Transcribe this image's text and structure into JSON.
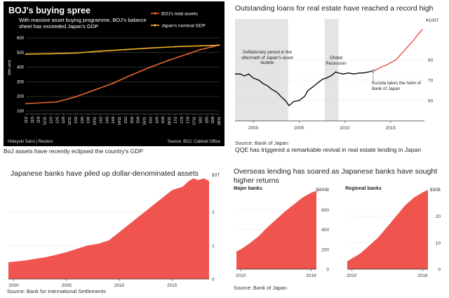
{
  "colors": {
    "boj_assets": "#e8672b",
    "nominal_gdp": "#f0b323",
    "loans": "#000000",
    "loans_kuroda": "#e8423f",
    "area_fill": "#f0544f",
    "shade": "#e4e4e4",
    "black_panel": "#000000"
  },
  "chart_data": [
    {
      "type": "line",
      "title": "BOJ's buying spree",
      "subtitle": "With massive asset buying programme, BOJ's balance sheet has exceeded Japan's GDP",
      "ylabel": "(trln yen)",
      "yticks": [
        100,
        200,
        300,
        400,
        500,
        600
      ],
      "ylim": [
        80,
        600
      ],
      "xticks": [
        "11/2",
        "11/5",
        "11/8",
        "11/11",
        "12/2",
        "12/5",
        "12/8",
        "12/11",
        "13/2",
        "13/5",
        "13/8",
        "13/11",
        "14/2",
        "14/5",
        "14/8",
        "14/11",
        "15/2",
        "15/5",
        "15/8",
        "15/11",
        "16/2",
        "16/5",
        "16/8",
        "16/11",
        "17/2",
        "17/5",
        "17/8",
        "17/11",
        "18/2",
        "18/5",
        "18/8",
        "18/11"
      ],
      "legend": [
        "BOJ's total assets",
        "Japan's nominal GDP"
      ],
      "series": [
        {
          "name": "BOJ's total assets",
          "color_key": "boj_assets",
          "x": [
            0,
            5,
            8,
            11,
            14,
            17,
            20,
            23,
            26,
            28,
            30,
            31
          ],
          "values": [
            150,
            162,
            197,
            243,
            290,
            347,
            400,
            448,
            490,
            520,
            540,
            553
          ]
        },
        {
          "name": "Japan's nominal GDP",
          "color_key": "nominal_gdp",
          "x": [
            0,
            4,
            8,
            12,
            16,
            20,
            24,
            28,
            31
          ],
          "values": [
            489,
            492,
            497,
            510,
            520,
            531,
            540,
            546,
            550
          ]
        }
      ],
      "footer_left": "Hideyuki Sano | Reuters",
      "footer_right": "Source: BOJ, Cabinet Office",
      "caption": "BoJ assets have recently eclipsed the country's GDP"
    },
    {
      "type": "line",
      "title": "Outstanding loans for real estate have reached a record high",
      "unit_label": "¥100T",
      "yticks": [
        60,
        70,
        80
      ],
      "ylim": [
        50,
        100
      ],
      "xticks": [
        2000,
        2005,
        2010,
        2015
      ],
      "xlim": [
        1998,
        2018.7
      ],
      "shaded_periods": [
        [
          1998,
          2003.8
        ],
        [
          2007.8,
          2009.3
        ]
      ],
      "annotations": [
        "Deflationary period in the aftermath of Japan's asset bubble",
        "Global Recession",
        "Kuroda takes the helm of Bank of Japan"
      ],
      "series": [
        {
          "name": "Outstanding loans",
          "x": [
            1998,
            1998.6,
            1999,
            1999.5,
            2000,
            2000.6,
            2001,
            2001.6,
            2002,
            2002.6,
            2003,
            2003.5,
            2003.9,
            2004.4,
            2005,
            2005.6,
            2006,
            2006.6,
            2007,
            2007.6,
            2008,
            2008.6,
            2009,
            2009.3,
            2009.8,
            2010.4,
            2011,
            2011.6,
            2012,
            2012.6,
            2013.1
          ],
          "values": [
            73,
            73,
            72,
            73,
            71,
            70,
            68.5,
            67,
            65.5,
            64,
            62,
            60,
            57.5,
            59.5,
            60,
            62,
            65,
            67,
            68.5,
            70.5,
            71,
            72.5,
            74,
            73.5,
            73,
            73.5,
            73,
            73.5,
            73.5,
            74,
            74.5
          ]
        },
        {
          "name": "Kuroda era",
          "x": [
            2013.1,
            2013.6,
            2014,
            2014.6,
            2015,
            2015.6,
            2016,
            2016.5,
            2017,
            2017.5,
            2018,
            2018.5
          ],
          "values": [
            74.5,
            75.5,
            76.5,
            77.5,
            78.5,
            80,
            82,
            84.5,
            87,
            89.5,
            92.5,
            95
          ]
        }
      ],
      "source": "Source: Bank of Japan",
      "caption": "QQE has triggered a remarkable revival in real estate lending in Japan"
    },
    {
      "type": "area",
      "title": "Japanese banks have piled up dollar-denominated assets",
      "unit_label": "$3T",
      "yticks": [
        0,
        1,
        2
      ],
      "ylim": [
        0,
        3.1
      ],
      "xticks": [
        2000,
        2005,
        2010,
        2015
      ],
      "xlim": [
        1999.5,
        2018.5
      ],
      "series": [
        {
          "name": "Dollar-denominated assets",
          "x": [
            1999.5,
            2001,
            2002,
            2003,
            2004,
            2005,
            2006,
            2007,
            2008,
            2009,
            2010,
            2011,
            2012,
            2013,
            2014,
            2015,
            2016,
            2016.5,
            2017,
            2017.5,
            2018,
            2018.5
          ],
          "values": [
            0.5,
            0.55,
            0.6,
            0.65,
            0.72,
            0.8,
            0.9,
            1.0,
            1.05,
            1.15,
            1.4,
            1.65,
            1.9,
            2.15,
            2.4,
            2.65,
            2.75,
            2.9,
            3.0,
            2.95,
            3.0,
            2.92
          ]
        }
      ],
      "source": "Source: Bank for International Settlements"
    },
    {
      "type": "area",
      "title": "Overseas lending has soared as Japanese banks have sought higher returns",
      "panel_title": "Major banks",
      "unit_label": "$800B",
      "yticks": [
        0,
        200,
        400,
        600
      ],
      "ylim": [
        0,
        800
      ],
      "xticks": [
        2010,
        2018
      ],
      "xlim": [
        2009.5,
        2018.6
      ],
      "series": [
        {
          "name": "Major banks",
          "x": [
            2009.5,
            2010,
            2011,
            2012,
            2013,
            2014,
            2015,
            2016,
            2017,
            2018,
            2018.6
          ],
          "values": [
            180,
            200,
            260,
            330,
            420,
            500,
            580,
            650,
            720,
            770,
            790
          ]
        }
      ],
      "source": "Source: Bank of Japan"
    },
    {
      "type": "area",
      "panel_title": "Regional banks",
      "unit_label": "$30B",
      "yticks": [
        0,
        10,
        20
      ],
      "ylim": [
        0,
        30
      ],
      "xticks": [
        2010,
        2018
      ],
      "xlim": [
        2009.5,
        2018.6
      ],
      "series": [
        {
          "name": "Regional banks",
          "x": [
            2009.5,
            2010,
            2011,
            2012,
            2013,
            2014,
            2015,
            2016,
            2017,
            2018,
            2018.6
          ],
          "values": [
            3,
            4,
            6,
            9,
            12,
            16,
            20,
            24,
            27,
            29,
            30
          ]
        }
      ]
    }
  ]
}
